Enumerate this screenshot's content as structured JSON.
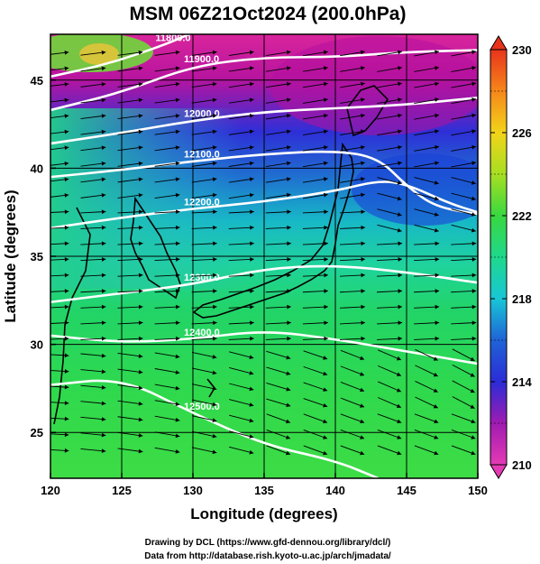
{
  "chart_data": {
    "type": "heatmap",
    "title": "MSM 06Z21Oct2024 (200.0hPa)",
    "xlabel": "Longitude (degrees)",
    "ylabel": "Latitude  (degrees)",
    "xlim": [
      120,
      150
    ],
    "ylim": [
      22.4,
      47.6
    ],
    "x_ticks": [
      "120",
      "125",
      "130",
      "135",
      "140",
      "145",
      "150"
    ],
    "y_ticks": [
      "25",
      "30",
      "35",
      "40",
      "45"
    ],
    "x_tick_values": [
      120,
      125,
      130,
      135,
      140,
      145,
      150
    ],
    "y_tick_values": [
      25,
      30,
      35,
      40,
      45
    ],
    "grid": true,
    "colorbar": {
      "range": [
        210,
        230
      ],
      "ticks": [
        "210",
        "214",
        "218",
        "222",
        "226",
        "230"
      ],
      "tick_values": [
        210,
        214,
        218,
        222,
        226,
        230
      ],
      "position": "right"
    },
    "contours": [
      {
        "value": "11800.0",
        "points": [
          [
            120,
            45.2
          ],
          [
            124,
            45.9
          ],
          [
            128,
            47.0
          ],
          [
            130,
            47.7
          ]
        ]
      },
      {
        "value": "11900.0",
        "points": [
          [
            120,
            43.3
          ],
          [
            125,
            44.3
          ],
          [
            130,
            45.8
          ],
          [
            135,
            46.3
          ],
          [
            140,
            46.3
          ],
          [
            145,
            46.6
          ],
          [
            150,
            46.7
          ]
        ]
      },
      {
        "value": "12000.0",
        "points": [
          [
            120,
            41.4
          ],
          [
            125,
            42.0
          ],
          [
            130,
            42.7
          ],
          [
            135,
            43.2
          ],
          [
            140,
            43.4
          ],
          [
            145,
            43.6
          ],
          [
            150,
            44.0
          ]
        ]
      },
      {
        "value": "12100.0",
        "points": [
          [
            120,
            39.5
          ],
          [
            125,
            39.9
          ],
          [
            130,
            40.4
          ],
          [
            135,
            40.8
          ],
          [
            140,
            41.0
          ],
          [
            143,
            40.6
          ],
          [
            145,
            39.0
          ],
          [
            147,
            37.8
          ],
          [
            150,
            37.4
          ]
        ]
      },
      {
        "value": "12200.0",
        "points": [
          [
            120,
            36.6
          ],
          [
            125,
            37.2
          ],
          [
            130,
            37.7
          ],
          [
            135,
            38.1
          ],
          [
            140,
            38.7
          ],
          [
            143,
            39.3
          ],
          [
            145,
            39.1
          ],
          [
            148,
            38.0
          ],
          [
            150,
            37.5
          ]
        ]
      },
      {
        "value": "12300.0",
        "points": [
          [
            120,
            32.4
          ],
          [
            125,
            32.9
          ],
          [
            130,
            33.4
          ],
          [
            135,
            34.3
          ],
          [
            140,
            34.5
          ],
          [
            145,
            34.1
          ],
          [
            150,
            33.5
          ]
        ]
      },
      {
        "value": "12400.0",
        "points": [
          [
            120,
            30.5
          ],
          [
            125,
            30.1
          ],
          [
            130,
            30.3
          ],
          [
            135,
            30.8
          ],
          [
            140,
            30.3
          ],
          [
            145,
            29.6
          ],
          [
            150,
            28.9
          ]
        ]
      },
      {
        "value": "12500.0",
        "points": [
          [
            120,
            27.7
          ],
          [
            125,
            28.1
          ],
          [
            130,
            26.1
          ],
          [
            135,
            24.3
          ],
          [
            140,
            23.4
          ],
          [
            143,
            22.4
          ]
        ]
      }
    ],
    "temperature_regions": [
      {
        "desc": "magenta cold core",
        "approx_value": 211
      },
      {
        "desc": "blue band",
        "approx_value": 215
      },
      {
        "desc": "green south",
        "approx_value": 223
      }
    ]
  },
  "credits": [
    "Drawing by DCL (https://www.gfd-dennou.org/library/dcl/)",
    "Data from http://database.rish.kyoto-u.ac.jp/arch/jmadata/"
  ]
}
